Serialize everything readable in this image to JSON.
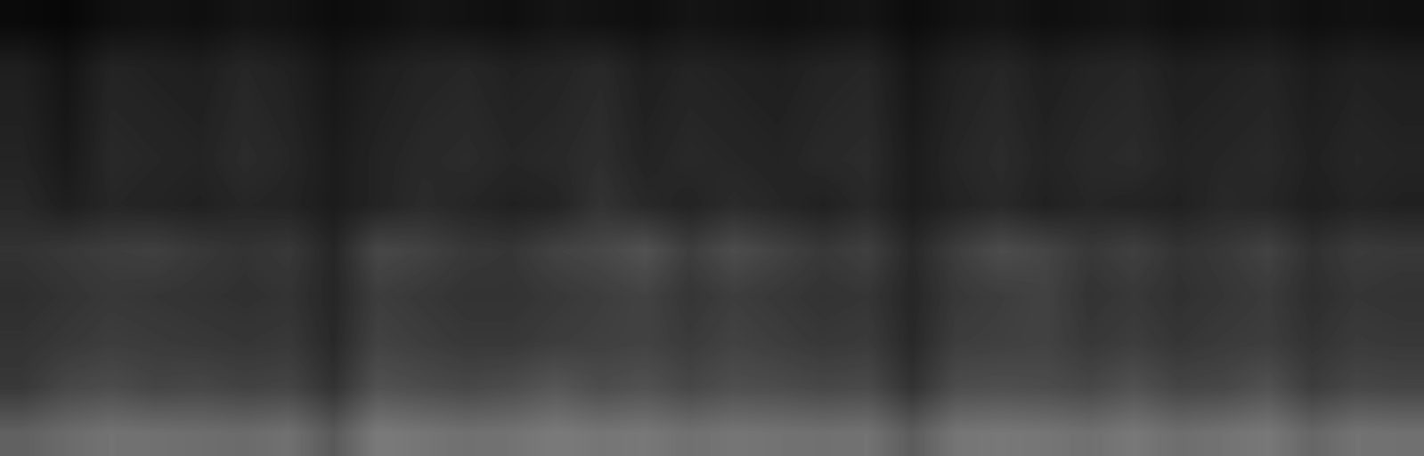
{
  "chart_data": {
    "type": "heatmap",
    "color": "gray",
    "tick_labels": false,
    "clim": [
      0,
      1
    ],
    "cells": [
      [
        0.04,
        0.03,
        0.06,
        0.07,
        0.06,
        0.08,
        0.07,
        0.05,
        0.06,
        0.08,
        0.07,
        0.06,
        0.08,
        0.07,
        0.06,
        0.08,
        0.07,
        0.06,
        0.07,
        0.08,
        0.05,
        0.07,
        0.08,
        0.06,
        0.07,
        0.08,
        0.06,
        0.07,
        0.08,
        0.06,
        0.07,
        0.06
      ],
      [
        0.12,
        0.08,
        0.14,
        0.13,
        0.12,
        0.15,
        0.13,
        0.09,
        0.12,
        0.14,
        0.15,
        0.13,
        0.14,
        0.16,
        0.12,
        0.14,
        0.13,
        0.12,
        0.14,
        0.15,
        0.09,
        0.13,
        0.15,
        0.12,
        0.14,
        0.15,
        0.12,
        0.13,
        0.14,
        0.11,
        0.13,
        0.12
      ],
      [
        0.13,
        0.09,
        0.15,
        0.14,
        0.13,
        0.16,
        0.14,
        0.1,
        0.13,
        0.15,
        0.16,
        0.14,
        0.15,
        0.17,
        0.13,
        0.15,
        0.14,
        0.13,
        0.15,
        0.16,
        0.1,
        0.14,
        0.16,
        0.13,
        0.15,
        0.16,
        0.13,
        0.14,
        0.15,
        0.12,
        0.14,
        0.13
      ],
      [
        0.14,
        0.1,
        0.16,
        0.15,
        0.14,
        0.17,
        0.15,
        0.11,
        0.14,
        0.16,
        0.17,
        0.15,
        0.16,
        0.18,
        0.14,
        0.16,
        0.15,
        0.14,
        0.16,
        0.17,
        0.11,
        0.15,
        0.17,
        0.14,
        0.16,
        0.17,
        0.14,
        0.15,
        0.16,
        0.13,
        0.15,
        0.14
      ],
      [
        0.16,
        0.12,
        0.15,
        0.14,
        0.13,
        0.15,
        0.14,
        0.11,
        0.14,
        0.17,
        0.15,
        0.13,
        0.14,
        0.2,
        0.16,
        0.14,
        0.17,
        0.15,
        0.13,
        0.16,
        0.11,
        0.14,
        0.16,
        0.13,
        0.15,
        0.14,
        0.13,
        0.16,
        0.15,
        0.12,
        0.14,
        0.13
      ],
      [
        0.2,
        0.22,
        0.24,
        0.25,
        0.22,
        0.2,
        0.22,
        0.15,
        0.28,
        0.26,
        0.22,
        0.21,
        0.26,
        0.28,
        0.32,
        0.24,
        0.3,
        0.26,
        0.22,
        0.25,
        0.16,
        0.24,
        0.3,
        0.27,
        0.22,
        0.25,
        0.2,
        0.22,
        0.26,
        0.19,
        0.23,
        0.22
      ],
      [
        0.18,
        0.2,
        0.22,
        0.21,
        0.2,
        0.19,
        0.2,
        0.15,
        0.24,
        0.22,
        0.2,
        0.2,
        0.22,
        0.24,
        0.26,
        0.21,
        0.24,
        0.22,
        0.2,
        0.21,
        0.15,
        0.22,
        0.24,
        0.26,
        0.2,
        0.22,
        0.19,
        0.21,
        0.23,
        0.18,
        0.21,
        0.2
      ],
      [
        0.2,
        0.22,
        0.24,
        0.23,
        0.22,
        0.21,
        0.22,
        0.16,
        0.26,
        0.24,
        0.22,
        0.22,
        0.24,
        0.25,
        0.26,
        0.23,
        0.26,
        0.24,
        0.22,
        0.23,
        0.16,
        0.24,
        0.25,
        0.26,
        0.22,
        0.24,
        0.21,
        0.23,
        0.24,
        0.2,
        0.23,
        0.22
      ],
      [
        0.22,
        0.28,
        0.3,
        0.27,
        0.28,
        0.26,
        0.27,
        0.2,
        0.32,
        0.3,
        0.28,
        0.3,
        0.34,
        0.3,
        0.32,
        0.28,
        0.31,
        0.3,
        0.28,
        0.29,
        0.2,
        0.3,
        0.31,
        0.3,
        0.28,
        0.32,
        0.27,
        0.28,
        0.32,
        0.24,
        0.28,
        0.27
      ],
      [
        0.38,
        0.42,
        0.45,
        0.44,
        0.43,
        0.42,
        0.44,
        0.35,
        0.48,
        0.46,
        0.44,
        0.45,
        0.48,
        0.46,
        0.47,
        0.44,
        0.46,
        0.45,
        0.44,
        0.45,
        0.36,
        0.46,
        0.47,
        0.46,
        0.44,
        0.47,
        0.43,
        0.45,
        0.47,
        0.4,
        0.45,
        0.44
      ]
    ]
  }
}
